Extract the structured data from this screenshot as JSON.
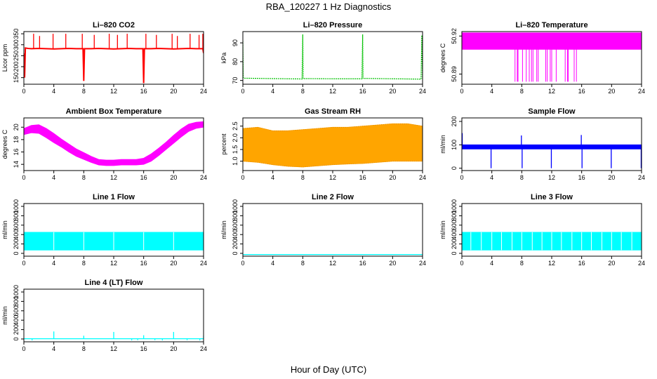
{
  "figure": {
    "title": "RBA_120227  1 Hz Diagnostics",
    "xlabel": "Hour of Day (UTC)"
  },
  "chart_data": [
    {
      "id": "co2",
      "type": "line",
      "title": "Li–820 CO2",
      "ylabel": "Licor ppm",
      "color": "#ff0000",
      "xlim": [
        0,
        24
      ],
      "ylim": [
        120,
        360
      ],
      "xticks": [
        0,
        4,
        8,
        12,
        16,
        20,
        24
      ],
      "yticks": [
        150,
        200,
        250,
        300,
        350
      ],
      "render": "line",
      "series": [
        {
          "x": [
            0.0,
            0.1,
            0.2,
            0.6,
            1.0,
            2.0,
            3.0,
            4.0,
            5.0,
            6.0,
            7.0,
            7.9,
            8.0,
            8.1,
            9.0,
            10.0,
            11.0,
            12.0,
            13.0,
            14.0,
            15.0,
            15.9,
            16.0,
            16.1,
            17.0,
            18.0,
            19.0,
            20.0,
            21.0,
            22.0,
            23.0,
            23.9,
            24.0
          ],
          "values": [
            260,
            150,
            285,
            283,
            282,
            283,
            282,
            281,
            282,
            283,
            282,
            282,
            135,
            282,
            282,
            283,
            282,
            281,
            282,
            283,
            282,
            282,
            125,
            282,
            282,
            283,
            282,
            281,
            282,
            283,
            282,
            282,
            262
          ]
        }
      ],
      "spikes": [
        {
          "x": 1.3,
          "value": 350
        },
        {
          "x": 2.1,
          "value": 340
        },
        {
          "x": 3.9,
          "value": 350
        },
        {
          "x": 5.6,
          "value": 350
        },
        {
          "x": 7.8,
          "value": 350
        },
        {
          "x": 9.4,
          "value": 345
        },
        {
          "x": 11.4,
          "value": 350
        },
        {
          "x": 12.5,
          "value": 345
        },
        {
          "x": 13.8,
          "value": 350
        },
        {
          "x": 16.3,
          "value": 350
        },
        {
          "x": 17.7,
          "value": 345
        },
        {
          "x": 19.8,
          "value": 350
        },
        {
          "x": 20.5,
          "value": 340
        },
        {
          "x": 22.2,
          "value": 350
        },
        {
          "x": 23.4,
          "value": 345
        },
        {
          "x": 23.9,
          "value": 350
        }
      ]
    },
    {
      "id": "pressure",
      "type": "line",
      "title": "Li–820 Pressure",
      "ylabel": "kPa",
      "color": "#00c000",
      "dashed": true,
      "xlim": [
        0,
        24
      ],
      "ylim": [
        68,
        96
      ],
      "xticks": [
        0,
        4,
        8,
        12,
        16,
        20,
        24
      ],
      "yticks": [
        70,
        80,
        90
      ],
      "render": "line",
      "series": [
        {
          "x": [
            0.0,
            0.05,
            0.15,
            0.3,
            4.0,
            7.9,
            8.0,
            8.05,
            12.0,
            15.9,
            16.0,
            16.05,
            20.0,
            23.8,
            23.9,
            24.0
          ],
          "values": [
            91,
            71.5,
            71.2,
            71.2,
            71.0,
            70.8,
            94.5,
            71.0,
            70.9,
            70.9,
            94.5,
            71.1,
            70.9,
            70.7,
            94.0,
            70.7
          ]
        }
      ]
    },
    {
      "id": "licor-temp",
      "type": "area",
      "title": "Li–820 Temperature",
      "ylabel": "degrees C",
      "color": "#ff00ff",
      "xlim": [
        0,
        24
      ],
      "ylim": [
        50.882,
        50.9235
      ],
      "xticks": [
        0,
        4,
        8,
        12,
        16,
        20,
        24
      ],
      "yticks": [
        50.89,
        50.92
      ],
      "ytick_labels": [
        "50.89",
        "50.92"
      ],
      "render": "band",
      "band": {
        "x": [
          0,
          24
        ],
        "low": [
          50.9095,
          50.9095
        ],
        "high": [
          50.9225,
          50.9225
        ]
      },
      "drops": [
        7.1,
        7.4,
        7.5,
        8.1,
        8.6,
        9.0,
        9.3,
        9.5,
        10.0,
        10.2,
        11.2,
        11.4,
        11.8,
        12.0,
        12.6,
        13.8,
        14.1,
        14.2,
        15.0,
        15.3
      ],
      "drops_to": 50.884
    },
    {
      "id": "ambient-temp",
      "type": "area",
      "title": "Ambient Box Temperature",
      "ylabel": "degrees C",
      "color": "#ff00ff",
      "xlim": [
        0,
        24
      ],
      "ylim": [
        13,
        21.5
      ],
      "xticks": [
        0,
        4,
        8,
        12,
        16,
        20,
        24
      ],
      "yticks": [
        14,
        16,
        18,
        20
      ],
      "render": "band",
      "band": {
        "x": [
          0,
          1,
          2,
          3,
          4,
          5,
          6,
          7,
          8,
          9,
          10,
          11,
          12,
          13,
          14,
          15,
          16,
          17,
          18,
          19,
          20,
          21,
          22,
          23,
          24
        ],
        "low": [
          18.8,
          19.1,
          19.0,
          18.3,
          17.5,
          16.8,
          16.0,
          15.3,
          14.8,
          14.3,
          13.9,
          13.8,
          13.8,
          13.9,
          13.9,
          13.9,
          14.0,
          14.5,
          15.4,
          16.4,
          17.4,
          18.4,
          19.3,
          19.8,
          20.0
        ],
        "high": [
          19.8,
          20.3,
          20.4,
          19.8,
          19.0,
          18.1,
          17.3,
          16.5,
          15.9,
          15.3,
          14.8,
          14.7,
          14.7,
          14.8,
          14.8,
          14.8,
          15.0,
          15.7,
          16.6,
          17.6,
          18.7,
          19.7,
          20.5,
          20.8,
          20.9
        ]
      }
    },
    {
      "id": "gas-rh",
      "type": "area",
      "title": "Gas Stream RH",
      "ylabel": "percent",
      "color": "#ffa500",
      "xlim": [
        0,
        24
      ],
      "ylim": [
        0.6,
        2.85
      ],
      "xticks": [
        0,
        4,
        8,
        12,
        16,
        20,
        24
      ],
      "yticks": [
        1.0,
        1.5,
        2.0,
        2.5
      ],
      "ytick_labels": [
        "1.0",
        "1.5",
        "2.0",
        "2.5"
      ],
      "render": "band",
      "band": {
        "x": [
          0,
          2,
          4,
          6,
          8,
          10,
          12,
          14,
          16,
          18,
          20,
          22,
          24
        ],
        "low": [
          1.0,
          0.95,
          0.85,
          0.78,
          0.75,
          0.8,
          0.85,
          0.88,
          0.9,
          0.95,
          1.0,
          1.0,
          1.0
        ],
        "high": [
          2.4,
          2.45,
          2.3,
          2.3,
          2.35,
          2.4,
          2.45,
          2.45,
          2.5,
          2.55,
          2.6,
          2.6,
          2.5
        ]
      }
    },
    {
      "id": "sample-flow",
      "type": "line",
      "title": "Sample Flow",
      "ylabel": "ml/min",
      "color": "#0000ff",
      "xlim": [
        0,
        24
      ],
      "ylim": [
        -10,
        215
      ],
      "xticks": [
        0,
        4,
        8,
        12,
        16,
        20,
        24
      ],
      "yticks": [
        0,
        100,
        200
      ],
      "render": "band",
      "band": {
        "x": [
          0,
          24
        ],
        "low": [
          82,
          82
        ],
        "high": [
          100,
          100
        ]
      },
      "spikes": [
        {
          "x": 0.05,
          "value": 150
        },
        {
          "x": 3.9,
          "value": 0
        },
        {
          "x": 7.95,
          "value": 140
        },
        {
          "x": 8.05,
          "value": 0
        },
        {
          "x": 11.95,
          "value": 0
        },
        {
          "x": 15.95,
          "value": 142
        },
        {
          "x": 16.05,
          "value": 0
        },
        {
          "x": 19.95,
          "value": 0
        },
        {
          "x": 23.95,
          "value": 0
        }
      ]
    },
    {
      "id": "line1-flow",
      "type": "area",
      "title": "Line 1 Flow",
      "ylabel": "ml/min",
      "color": "#00ffff",
      "xlim": [
        0,
        24
      ],
      "ylim": [
        -60,
        1060
      ],
      "xticks": [
        0,
        4,
        8,
        12,
        16,
        20,
        24
      ],
      "yticks": [
        0,
        200,
        400,
        600,
        800,
        1000
      ],
      "render": "band",
      "band": {
        "x": [
          0,
          24
        ],
        "low": [
          70,
          70
        ],
        "high": [
          450,
          450
        ]
      },
      "gaps": [
        4.0,
        8.0,
        12.0,
        16.0,
        20.0
      ]
    },
    {
      "id": "line2-flow",
      "type": "line",
      "title": "Line 2 Flow",
      "ylabel": "ml/min",
      "color": "#00ffff",
      "xlim": [
        0,
        24
      ],
      "ylim": [
        -60,
        1060
      ],
      "xticks": [
        0,
        4,
        8,
        12,
        16,
        20,
        24
      ],
      "yticks": [
        0,
        200,
        400,
        600,
        800,
        1000
      ],
      "render": "line",
      "series": [
        {
          "x": [
            0,
            24
          ],
          "values": [
            -25,
            -25
          ]
        }
      ]
    },
    {
      "id": "line3-flow",
      "type": "area",
      "title": "Line 3 Flow",
      "ylabel": "ml/min",
      "color": "#00ffff",
      "xlim": [
        0,
        24
      ],
      "ylim": [
        -60,
        1060
      ],
      "xticks": [
        0,
        4,
        8,
        12,
        16,
        20,
        24
      ],
      "yticks": [
        0,
        200,
        400,
        600,
        800,
        1000
      ],
      "render": "band",
      "band": {
        "x": [
          0,
          24
        ],
        "low": [
          70,
          70
        ],
        "high": [
          450,
          450
        ]
      },
      "gaps": [
        1.2,
        2.6,
        4.0,
        5.3,
        6.7,
        8.0,
        9.4,
        10.7,
        12.0,
        13.3,
        14.7,
        16.0,
        17.3,
        18.7,
        20.0,
        21.3,
        22.7
      ]
    },
    {
      "id": "line4-flow",
      "type": "line",
      "title": "Line 4 (LT) Flow",
      "ylabel": "ml/min",
      "color": "#00ffff",
      "xlim": [
        0,
        24
      ],
      "ylim": [
        -60,
        1060
      ],
      "xticks": [
        0,
        4,
        8,
        12,
        16,
        20,
        24
      ],
      "yticks": [
        0,
        200,
        400,
        600,
        800,
        1000
      ],
      "render": "line",
      "series": [
        {
          "x": [
            0,
            24
          ],
          "values": [
            5,
            5
          ]
        }
      ],
      "spikes": [
        {
          "x": 1.1,
          "value": -30
        },
        {
          "x": 4.0,
          "value": 160
        },
        {
          "x": 8.0,
          "value": 70
        },
        {
          "x": 12.0,
          "value": 150
        },
        {
          "x": 14.4,
          "value": -30
        },
        {
          "x": 15.2,
          "value": -25
        },
        {
          "x": 16.0,
          "value": 80
        },
        {
          "x": 17.5,
          "value": -25
        },
        {
          "x": 18.5,
          "value": -30
        },
        {
          "x": 20.0,
          "value": 150
        },
        {
          "x": 21.8,
          "value": -25
        },
        {
          "x": 23.5,
          "value": -30
        },
        {
          "x": 24.0,
          "value": 70
        }
      ]
    }
  ]
}
